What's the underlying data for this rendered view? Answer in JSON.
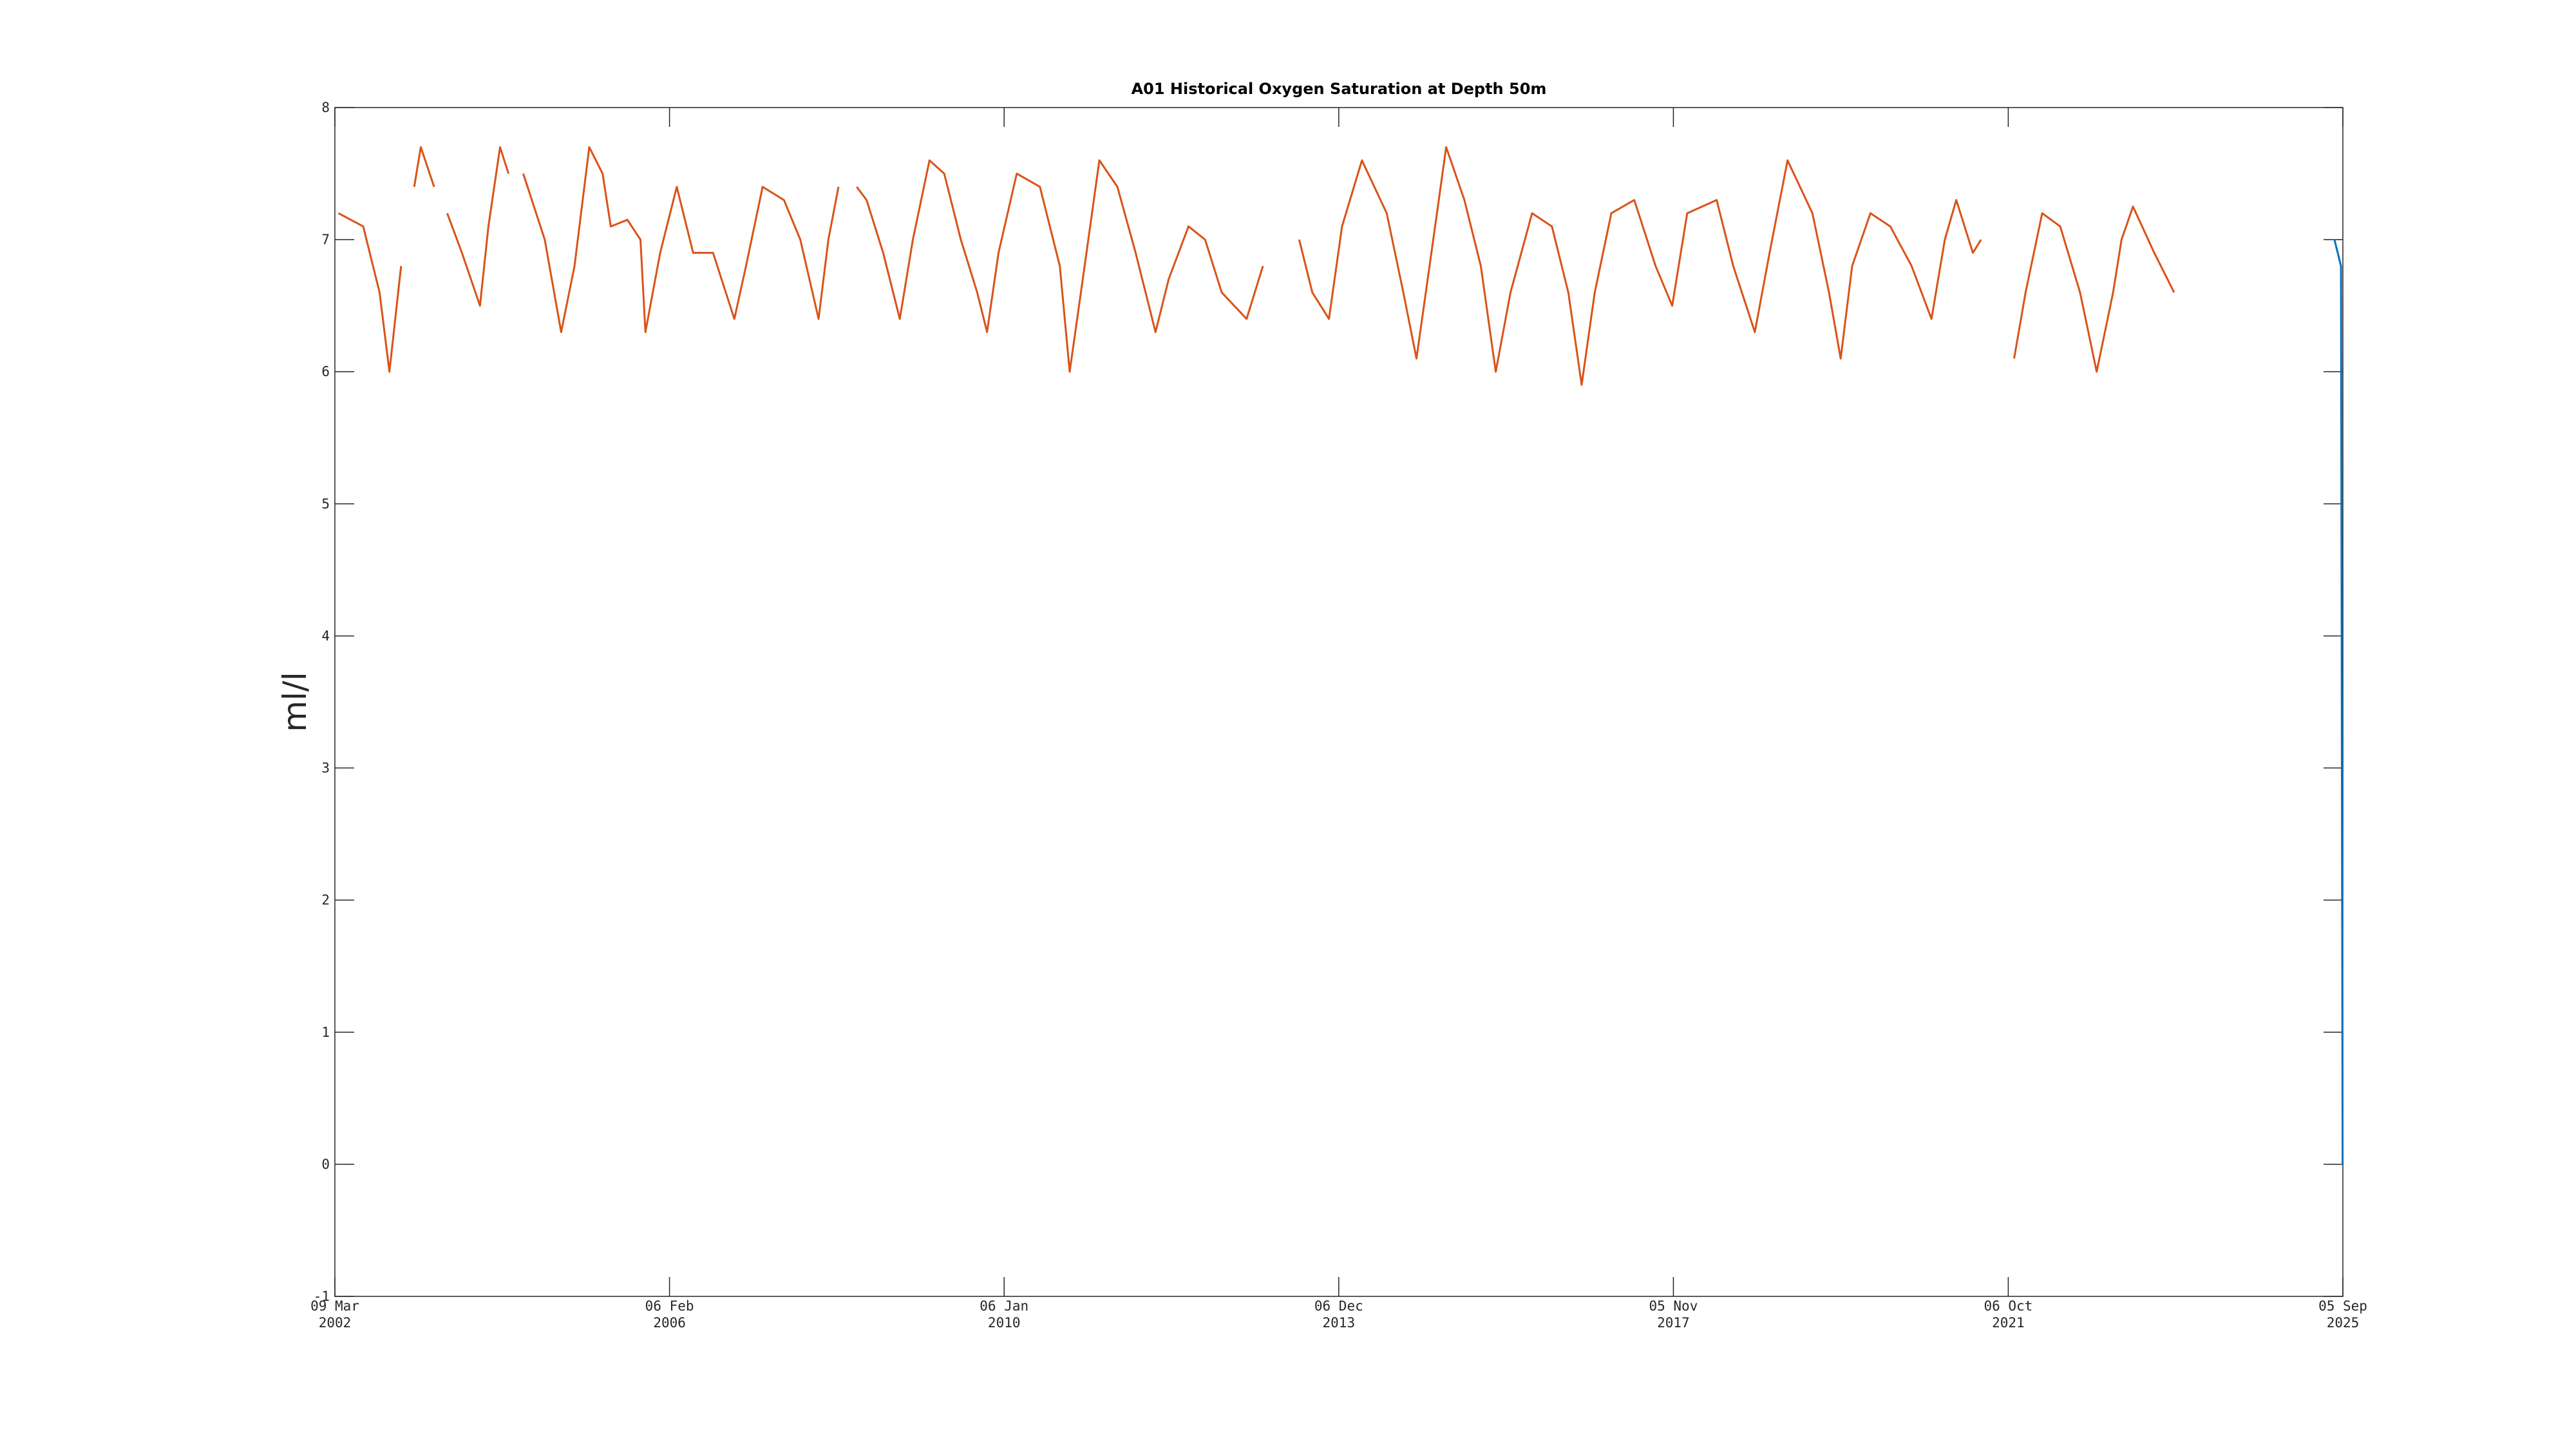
{
  "chart_data": {
    "type": "line",
    "title": "A01 Historical Oxygen Saturation at Depth 50m",
    "ylabel": "ml/l",
    "xlim": [
      "2002-03-09",
      "2025-09-05"
    ],
    "xticks": [
      {
        "value": "2002-03-09",
        "label": [
          "09 Mar",
          "2002"
        ]
      },
      {
        "value": "2006-02-06",
        "label": [
          "06 Feb",
          "2006"
        ]
      },
      {
        "value": "2010-01-06",
        "label": [
          "06 Jan",
          "2010"
        ]
      },
      {
        "value": "2013-12-06",
        "label": [
          "06 Dec",
          "2013"
        ]
      },
      {
        "value": "2017-11-05",
        "label": [
          "05 Nov",
          "2017"
        ]
      },
      {
        "value": "2021-10-06",
        "label": [
          "06 Oct",
          "2021"
        ]
      },
      {
        "value": "2025-09-05",
        "label": [
          "05 Sep",
          "2025"
        ]
      }
    ],
    "ylim": [
      -1,
      8
    ],
    "yticks": [
      -1,
      0,
      1,
      2,
      3,
      4,
      5,
      6,
      7,
      8
    ],
    "series": [
      {
        "color": "#d95319",
        "x": [
          "2002-03-24",
          "2002-07-08",
          "2002-09-16",
          "2002-10-28",
          "2002-12-17",
          "2003-01-10",
          "2003-02-11",
          "2003-03-11",
          "2003-05-07",
          "2003-05-25",
          "2003-07-02",
          "2003-09-03",
          "2003-11-19",
          "2003-12-25",
          "2004-02-13",
          "2004-03-20",
          "2004-04-05",
          "2004-05-22",
          "2004-08-22",
          "2004-10-31",
          "2004-12-27",
          "2005-02-28",
          "2005-04-26",
          "2005-05-31",
          "2005-08-10",
          "2005-10-05",
          "2005-10-26",
          "2005-12-28",
          "2006-03-09",
          "2006-05-18",
          "2006-08-11",
          "2006-11-10",
          "2006-12-30",
          "2007-03-11",
          "2007-06-10",
          "2007-08-19",
          "2007-11-05",
          "2007-12-17",
          "2008-01-29",
          "2008-02-20",
          "2008-04-16",
          "2008-05-28",
          "2008-08-07",
          "2008-10-17",
          "2008-12-12",
          "2009-02-21",
          "2009-04-25",
          "2009-07-05",
          "2009-09-13",
          "2009-10-25",
          "2009-12-13",
          "2010-03-01",
          "2010-06-08",
          "2010-09-01",
          "2010-10-13",
          "2010-12-16",
          "2011-02-17",
          "2011-05-05",
          "2011-07-22",
          "2011-10-15",
          "2011-12-10",
          "2012-03-04",
          "2012-05-14",
          "2012-07-24",
          "2012-11-07",
          "2013-01-16",
          "2013-04-10",
          "2013-06-20",
          "2013-08-15",
          "2013-10-25",
          "2013-12-20",
          "2014-03-15",
          "2014-06-29",
          "2014-09-08",
          "2014-11-03",
          "2014-12-29",
          "2015-03-10",
          "2015-05-27",
          "2015-08-05",
          "2015-10-08",
          "2015-12-10",
          "2016-03-11",
          "2016-06-04",
          "2016-08-13",
          "2016-10-09",
          "2016-12-04",
          "2017-02-13",
          "2017-05-22",
          "2017-08-21",
          "2017-10-31",
          "2018-01-03",
          "2018-05-09",
          "2018-07-19",
          "2018-10-19",
          "2018-12-21",
          "2019-03-08",
          "2019-06-22",
          "2019-09-01",
          "2019-10-21",
          "2019-12-09",
          "2020-02-25",
          "2020-05-20",
          "2020-08-19",
          "2020-11-12",
          "2021-01-08",
          "2021-02-26",
          "2021-05-08",
          "2021-06-12",
          "2021-08-01",
          "2021-10-31",
          "2021-12-19",
          "2022-02-28",
          "2022-05-16",
          "2022-08-09",
          "2022-10-19",
          "2022-12-28",
          "2023-02-02",
          "2023-03-23",
          "2023-06-22",
          "2023-09-15"
        ],
        "values": [
          7.2,
          7.1,
          6.6,
          6.0,
          6.8,
          null,
          7.4,
          7.7,
          7.4,
          null,
          7.2,
          6.9,
          6.5,
          7.1,
          7.7,
          7.5,
          null,
          7.5,
          7.0,
          6.3,
          6.8,
          7.7,
          7.5,
          7.1,
          7.15,
          7.0,
          6.3,
          6.9,
          7.4,
          6.9,
          6.9,
          6.4,
          6.8,
          7.4,
          7.3,
          7.0,
          6.4,
          7.0,
          7.4,
          null,
          7.4,
          7.3,
          6.9,
          6.4,
          7.0,
          7.6,
          7.5,
          7.0,
          6.6,
          6.3,
          6.9,
          7.5,
          7.4,
          6.8,
          6.0,
          6.8,
          7.6,
          7.4,
          6.9,
          6.3,
          6.7,
          7.1,
          7.0,
          6.6,
          6.4,
          6.8,
          null,
          7.0,
          6.6,
          6.4,
          7.1,
          7.6,
          7.2,
          6.6,
          6.1,
          6.8,
          7.7,
          7.3,
          6.8,
          6.0,
          6.6,
          7.2,
          7.1,
          6.6,
          5.9,
          6.6,
          7.2,
          7.3,
          6.8,
          6.5,
          7.2,
          7.3,
          6.8,
          6.3,
          6.9,
          7.6,
          7.2,
          6.6,
          6.1,
          6.8,
          7.2,
          7.1,
          6.8,
          6.4,
          7.0,
          7.3,
          6.9,
          7.0,
          null,
          6.1,
          6.6,
          7.2,
          7.1,
          6.6,
          6.0,
          6.6,
          7.0,
          7.25,
          6.9,
          6.6
        ]
      },
      {
        "color": "#0072bd",
        "x": [
          "2025-07-31",
          "2025-08-14",
          "2025-08-28",
          "2025-09-04"
        ],
        "values": [
          7.0,
          6.9,
          6.8,
          0
        ]
      }
    ]
  }
}
